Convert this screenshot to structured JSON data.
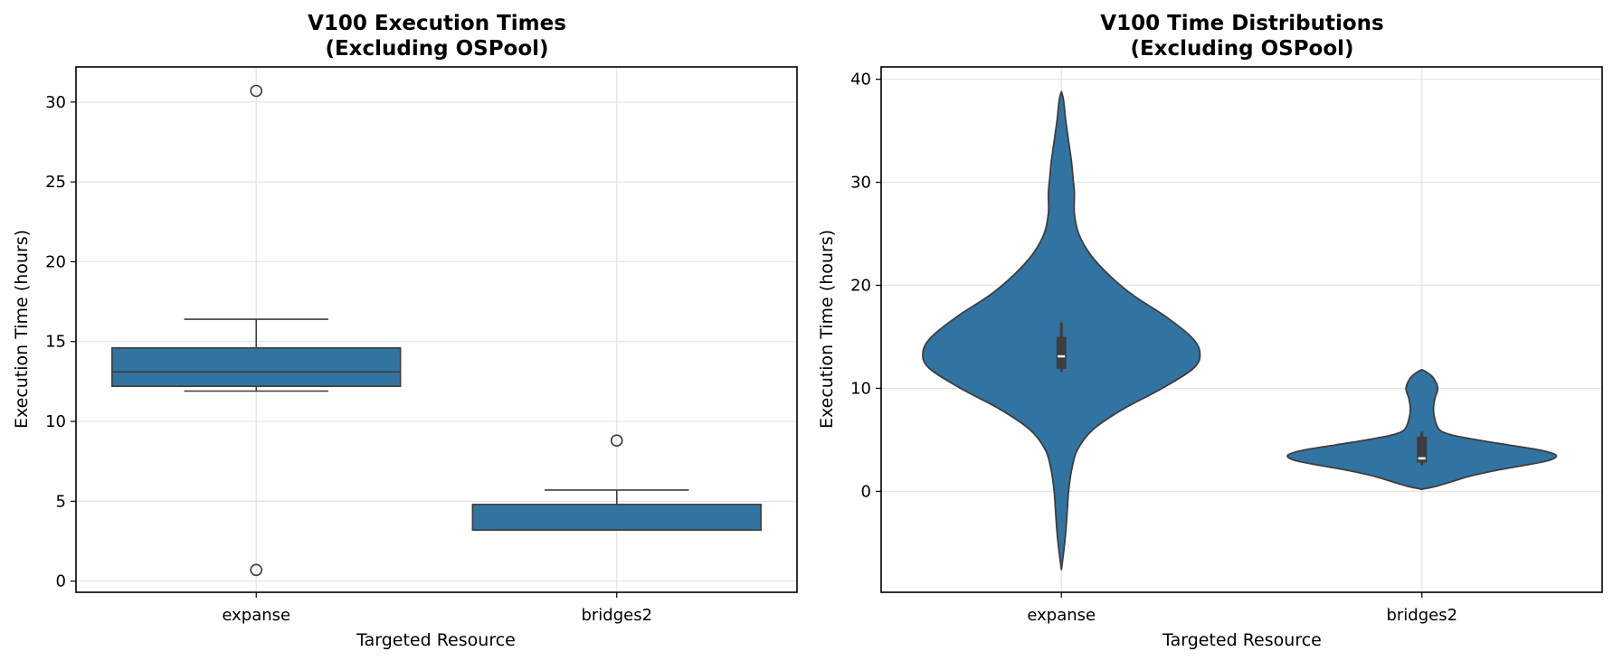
{
  "colors": {
    "fill": "#3274a1",
    "edge": "#3d3d3d",
    "grid": "#e3e3e3"
  },
  "chart_data": [
    {
      "type": "box",
      "title_line1": "V100 Execution Times",
      "title_line2": "(Excluding OSPool)",
      "xlabel": "Targeted Resource",
      "ylabel": "Execution Time (hours)",
      "categories": [
        "expanse",
        "bridges2"
      ],
      "ylim": [
        -0.7,
        32.2
      ],
      "yticks": [
        0,
        5,
        10,
        15,
        20,
        25,
        30
      ],
      "grid": true,
      "boxes": [
        {
          "category": "expanse",
          "whisker_low": 11.9,
          "q1": 12.2,
          "median": 13.1,
          "q3": 14.6,
          "whisker_high": 16.4,
          "outliers": [
            30.7,
            0.7
          ]
        },
        {
          "category": "bridges2",
          "whisker_low": 3.2,
          "q1": 3.2,
          "median": 3.2,
          "q3": 4.8,
          "whisker_high": 5.7,
          "outliers": [
            8.8
          ]
        }
      ]
    },
    {
      "type": "violin",
      "title_line1": "V100 Time Distributions",
      "title_line2": "(Excluding OSPool)",
      "xlabel": "Targeted Resource",
      "ylabel": "Execution Time (hours)",
      "categories": [
        "expanse",
        "bridges2"
      ],
      "ylim": [
        -9.8,
        41.2
      ],
      "yticks": [
        0,
        10,
        20,
        30,
        40
      ],
      "grid": true,
      "violins": [
        {
          "category": "expanse",
          "q1": 11.9,
          "median": 13.1,
          "q3": 15.0,
          "whisker_low": 11.6,
          "whisker_high": 16.4,
          "profile": [
            [
              -7.6,
              0.0
            ],
            [
              -6,
              0.015
            ],
            [
              -4,
              0.03
            ],
            [
              -2,
              0.04
            ],
            [
              0,
              0.05
            ],
            [
              2,
              0.07
            ],
            [
              4,
              0.11
            ],
            [
              6,
              0.22
            ],
            [
              8,
              0.43
            ],
            [
              10,
              0.7
            ],
            [
              12,
              0.92
            ],
            [
              13.5,
              0.96
            ],
            [
              15,
              0.9
            ],
            [
              17,
              0.72
            ],
            [
              19,
              0.5
            ],
            [
              21,
              0.33
            ],
            [
              23,
              0.2
            ],
            [
              25,
              0.12
            ],
            [
              27,
              0.09
            ],
            [
              29,
              0.09
            ],
            [
              30.5,
              0.08
            ],
            [
              32,
              0.07
            ],
            [
              34,
              0.05
            ],
            [
              36,
              0.03
            ],
            [
              38,
              0.015
            ],
            [
              38.8,
              0.0
            ]
          ]
        },
        {
          "category": "bridges2",
          "q1": 2.8,
          "median": 3.2,
          "q3": 5.3,
          "whisker_low": 2.5,
          "whisker_high": 5.8,
          "profile": [
            [
              0.2,
              0.0
            ],
            [
              0.5,
              0.1
            ],
            [
              1,
              0.22
            ],
            [
              1.5,
              0.34
            ],
            [
              2,
              0.5
            ],
            [
              2.5,
              0.7
            ],
            [
              3,
              0.88
            ],
            [
              3.5,
              0.93
            ],
            [
              4,
              0.82
            ],
            [
              4.5,
              0.6
            ],
            [
              5,
              0.38
            ],
            [
              5.5,
              0.2
            ],
            [
              6,
              0.12
            ],
            [
              7,
              0.09
            ],
            [
              8,
              0.08
            ],
            [
              9,
              0.09
            ],
            [
              10,
              0.11
            ],
            [
              11,
              0.08
            ],
            [
              11.6,
              0.03
            ],
            [
              11.8,
              0.0
            ]
          ]
        }
      ]
    }
  ]
}
